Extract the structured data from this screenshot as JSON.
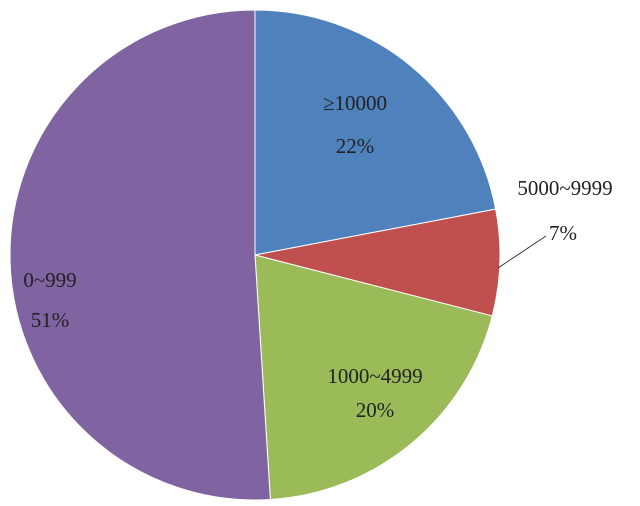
{
  "chart_data": {
    "type": "pie",
    "categories": [
      "≥10000",
      "5000~9999",
      "1000~4999",
      "0~999"
    ],
    "values": [
      22,
      7,
      20,
      51
    ],
    "value_labels": [
      "22%",
      "7%",
      "20%",
      "51%"
    ],
    "colors": [
      "#4f81bd",
      "#c0504d",
      "#9bbb59",
      "#8064a2"
    ]
  }
}
